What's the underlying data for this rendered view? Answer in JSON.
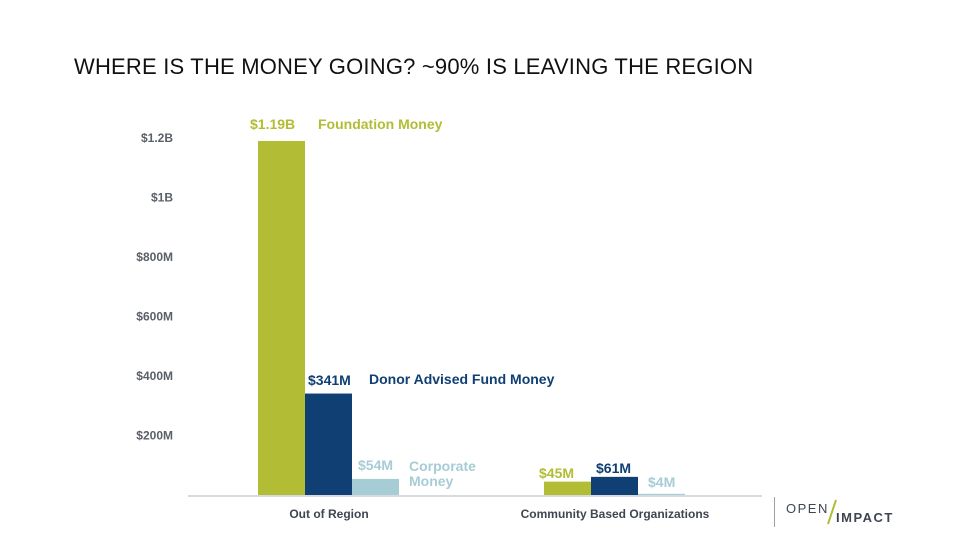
{
  "slide": {
    "title": "WHERE IS THE MONEY GOING? ~90% IS LEAVING THE REGION"
  },
  "logo": {
    "word1": "OPEN",
    "word2": "IMPACT"
  },
  "colors": {
    "foundation": "#b2bd35",
    "donor_advised": "#0f3f73",
    "corporate": "#a6cdd6",
    "axis_text": "#5a6068",
    "baseline": "#d7dbe0"
  },
  "chart_data": {
    "type": "bar",
    "title": "",
    "xlabel": "",
    "ylabel": "",
    "categories": [
      "Out of Region",
      "Community Based Organizations"
    ],
    "ylim": [
      0,
      1.2
    ],
    "y_unit": "billions of USD",
    "y_ticks": [
      "$200M",
      "$400M",
      "$600M",
      "$800M",
      "$1B",
      "$1.2B"
    ],
    "y_tick_values": [
      0.2,
      0.4,
      0.6,
      0.8,
      1.0,
      1.2
    ],
    "grid": false,
    "legend": "none (series labeled inline next to bars)",
    "series": [
      {
        "name": "Foundation Money",
        "values": [
          1.19,
          0.045
        ],
        "value_labels": [
          "$1.19B",
          "$45M"
        ],
        "inline_label": [
          "Foundation Money"
        ]
      },
      {
        "name": "Donor Advised Fund Money",
        "values": [
          0.341,
          0.061
        ],
        "value_labels": [
          "$341M",
          "$61M"
        ],
        "inline_label": [
          "Donor Advised Fund Money"
        ]
      },
      {
        "name": "Corporate Money",
        "values": [
          0.054,
          0.004
        ],
        "value_labels": [
          "$54M",
          "$4M"
        ],
        "inline_label": [
          "Corporate",
          "Money"
        ]
      }
    ]
  }
}
